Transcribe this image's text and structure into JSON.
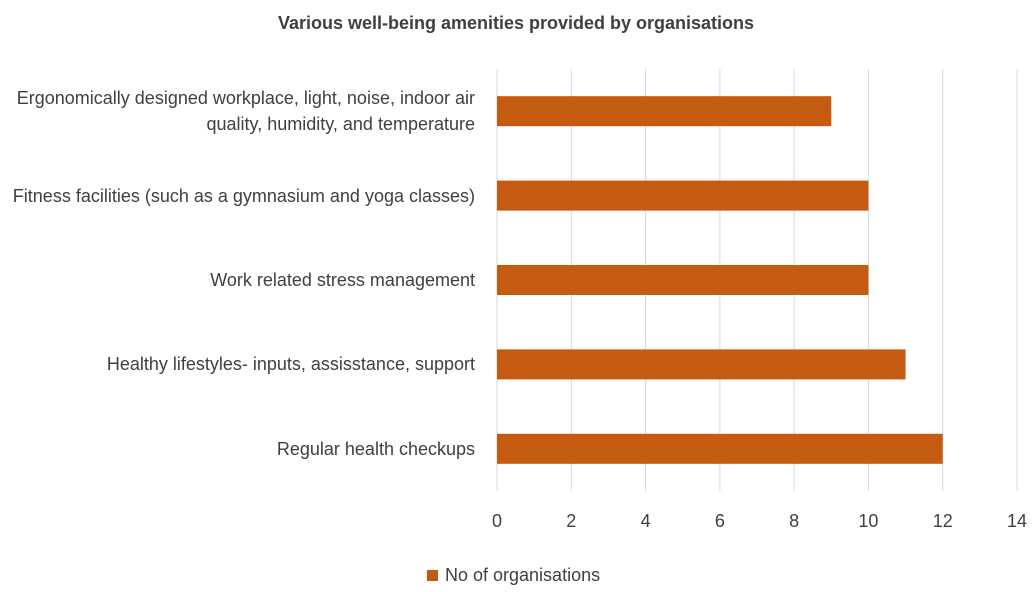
{
  "chart_data": {
    "type": "bar",
    "orientation": "horizontal",
    "title": "Various well-being amenities provided by organisations",
    "categories": [
      "Ergonomically designed workplace, light, noise, indoor air quality, humidity, and temperature",
      "Fitness facilities (such as a gymnasium and yoga classes)",
      "Work related stress management",
      "Healthy lifestyles- inputs, assisstance, support",
      "Regular health checkups"
    ],
    "series": [
      {
        "name": "No of organisations",
        "color": "#c55a11",
        "values": [
          9,
          10,
          10,
          11,
          12
        ]
      }
    ],
    "xlim": [
      0,
      14
    ],
    "xticks": [
      0,
      2,
      4,
      6,
      8,
      10,
      12,
      14
    ],
    "grid": true,
    "legend": "bottom"
  }
}
